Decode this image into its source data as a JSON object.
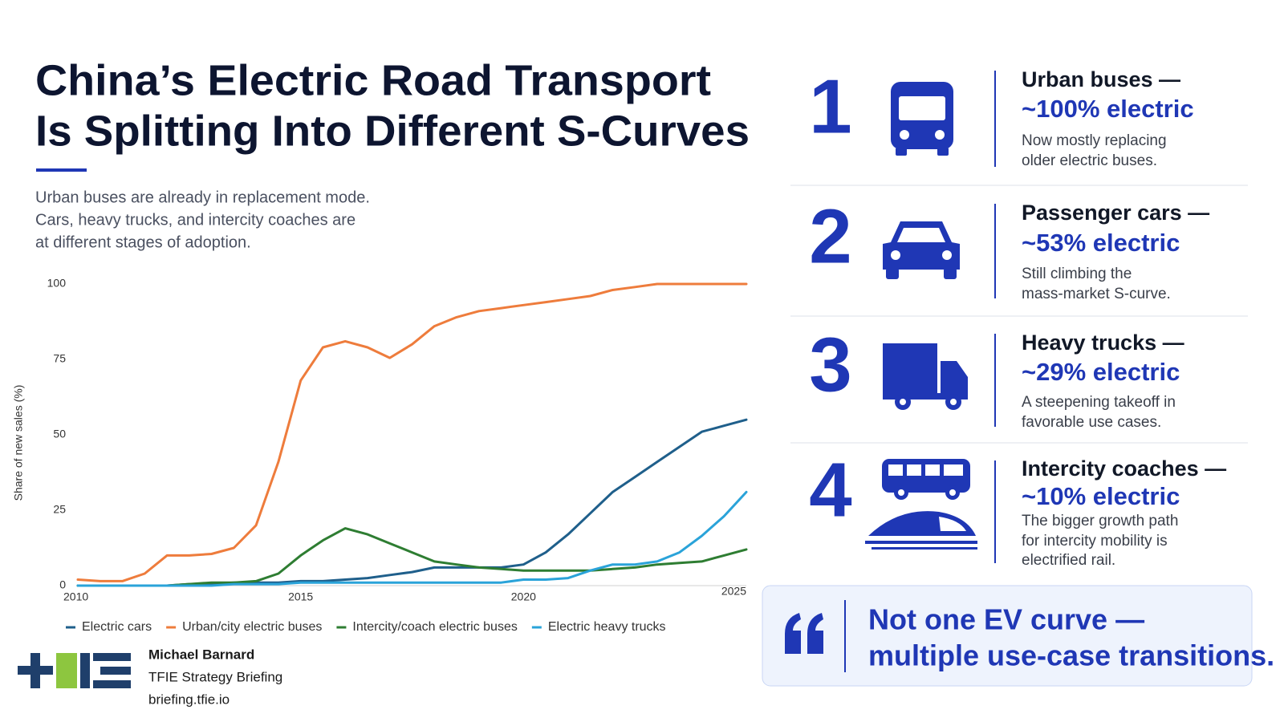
{
  "header": {
    "title": [
      "China’s Electric Road Transport",
      "Is Splitting Into Different S-Curves"
    ],
    "subtitle": [
      "Urban buses are already in replacement mode.",
      "Cars, heavy trucks, and intercity coaches are",
      "at different stages of adoption."
    ]
  },
  "chart_data": {
    "type": "line",
    "ylabel": "Share of new sales (%)",
    "x": [
      2010,
      2010.5,
      2011,
      2011.5,
      2012,
      2012.5,
      2013,
      2013.5,
      2014,
      2014.5,
      2015,
      2015.5,
      2016,
      2016.5,
      2017,
      2017.5,
      2018,
      2018.5,
      2019,
      2019.5,
      2020,
      2020.5,
      2021,
      2021.5,
      2022,
      2022.5,
      2023,
      2023.5,
      2024,
      2024.5,
      2025
    ],
    "xlim": [
      2010,
      2025
    ],
    "xticks": [
      2010,
      2015,
      2020,
      2025
    ],
    "ylim": [
      0,
      100
    ],
    "yticks": [
      0,
      25,
      50,
      75,
      100
    ],
    "grid": false,
    "series": [
      {
        "name": "Electric cars",
        "color": "#1f5f8b",
        "values": [
          0,
          0,
          0,
          0,
          0,
          0.5,
          0.5,
          1,
          1,
          1,
          1.5,
          1.5,
          2,
          2.5,
          3.5,
          4.5,
          6,
          6,
          6,
          6,
          7,
          11,
          17,
          24,
          31,
          36,
          41,
          46,
          51,
          53,
          55
        ]
      },
      {
        "name": "Urban/city electric buses",
        "color": "#ee7c3c",
        "values": [
          2,
          1.5,
          1.5,
          4,
          10,
          10,
          10.5,
          12.5,
          20,
          41,
          68,
          79,
          81,
          79,
          75.5,
          80,
          86,
          89,
          91,
          92,
          93,
          94,
          95,
          96,
          98,
          99,
          100,
          100,
          100,
          100,
          100
        ]
      },
      {
        "name": "Intercity/coach electric buses",
        "color": "#2e7d32",
        "values": [
          0,
          0,
          0,
          0,
          0,
          0.5,
          1,
          1,
          1.5,
          4,
          10,
          15,
          19,
          17,
          14,
          11,
          8,
          7,
          6,
          5.5,
          5,
          5,
          5,
          5,
          5.5,
          6,
          7,
          7.5,
          8,
          10,
          12
        ]
      },
      {
        "name": "Electric heavy trucks",
        "color": "#2aa3d9",
        "values": [
          0,
          0,
          0,
          0,
          0,
          0,
          0,
          0.5,
          0.5,
          0.5,
          1,
          1,
          1,
          1,
          1,
          1,
          1,
          1,
          1,
          1,
          2,
          2,
          2.5,
          5,
          7,
          7,
          8,
          11,
          16.5,
          23,
          31
        ]
      }
    ]
  },
  "items": [
    {
      "number": "1",
      "heading": "Urban buses —",
      "stat": "~100% electric",
      "desc": [
        "Now mostly replacing",
        "older electric buses."
      ]
    },
    {
      "number": "2",
      "heading": "Passenger cars —",
      "stat": "~53% electric",
      "desc": [
        "Still climbing the",
        "mass-market S-curve."
      ]
    },
    {
      "number": "3",
      "heading": "Heavy trucks —",
      "stat": "~29% electric",
      "desc": [
        "A steepening takeoff in",
        "favorable use cases."
      ]
    },
    {
      "number": "4",
      "heading": "Intercity coaches —",
      "stat": "~10% electric",
      "desc": [
        "The bigger growth path",
        "for intercity mobility is",
        "electrified rail."
      ]
    }
  ],
  "quote": [
    "Not one EV curve —",
    "multiple use-case transitions."
  ],
  "footer": {
    "author": "Michael Barnard",
    "org": "TFIE Strategy Briefing",
    "url": "briefing.tfie.io"
  }
}
